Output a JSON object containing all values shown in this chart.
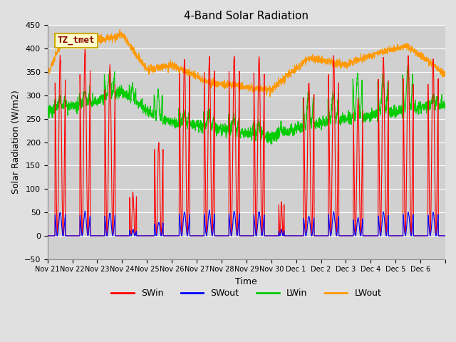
{
  "title": "4-Band Solar Radiation",
  "xlabel": "Time",
  "ylabel": "Solar Radiation (W/m2)",
  "ylim": [
    -50,
    450
  ],
  "label_annotation": "TZ_tmet",
  "legend_labels": [
    "SWin",
    "SWout",
    "LWin",
    "LWout"
  ],
  "line_colors": {
    "SWin": "#ff0000",
    "SWout": "#0000ff",
    "LWin": "#00cc00",
    "LWout": "#ff9900"
  },
  "background_color": "#e0e0e0",
  "plot_bg_color": "#d0d0d0",
  "grid_color": "#ffffff",
  "n_days": 16,
  "xtick_labels": [
    "Nov 21",
    "Nov 22",
    "Nov 23",
    "Nov 24",
    "Nov 25",
    "Nov 26",
    "Nov 27",
    "Nov 28",
    "Nov 29",
    "Nov 30",
    "Dec 1",
    "Dec 2",
    "Dec 3",
    "Dec 4",
    "Dec 5",
    "Dec 6"
  ],
  "annotation_bg": "#ffffcc",
  "annotation_border": "#ccaa00",
  "annotation_text_color": "#880000",
  "annotation_fontsize": 9,
  "figsize": [
    6.4,
    4.8
  ],
  "dpi": 100
}
